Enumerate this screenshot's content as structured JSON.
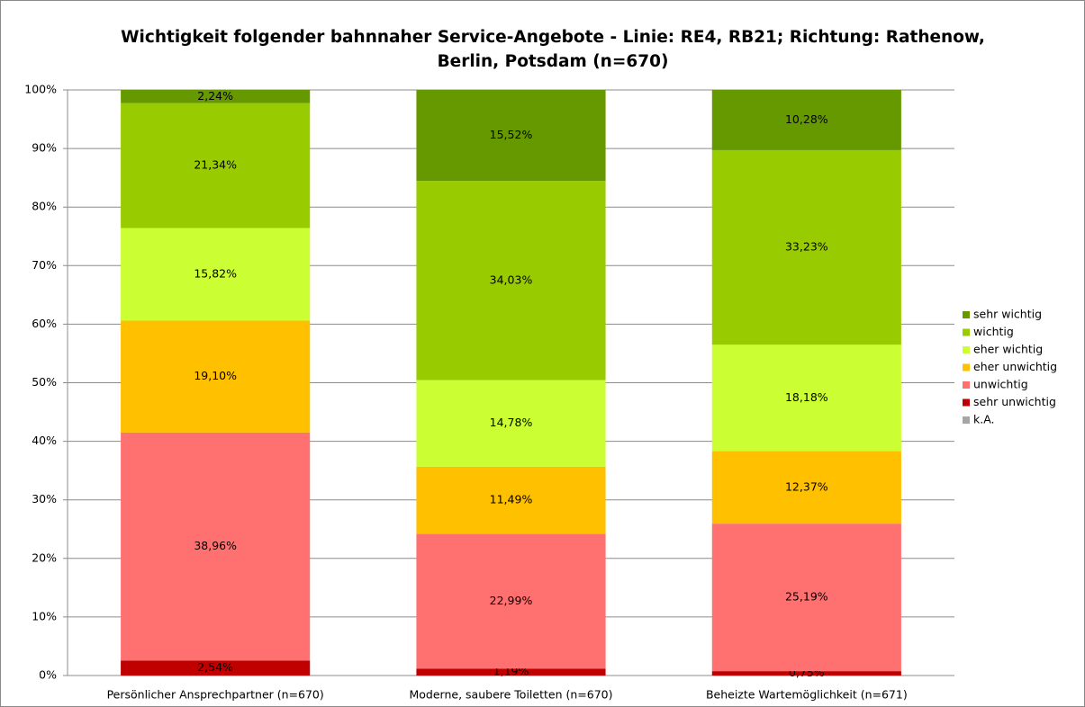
{
  "chart_data": {
    "type": "stacked_bar",
    "title": "Wichtigkeit folgender bahnnaher Service-Angebote - Linie: RE4, RB21; Richtung: Rathenow, Berlin, Potsdam (n=670)",
    "categories": [
      "Persönlicher Ansprechpartner (n=670)",
      "Moderne, saubere Toiletten (n=670)",
      "Beheizte Wartemöglichkeit (n=671)"
    ],
    "series": [
      {
        "name": "k.A.",
        "color": "#a6a6a6",
        "values": [
          0,
          0,
          0
        ]
      },
      {
        "name": "sehr unwichtig",
        "color": "#c00000",
        "values": [
          2.54,
          1.19,
          0.75
        ],
        "value_labels": [
          "2,54%",
          "1,19%",
          "0,75%"
        ]
      },
      {
        "name": "unwichtig",
        "color": "#ff7171",
        "values": [
          38.96,
          22.99,
          25.19
        ],
        "value_labels": [
          "38,96%",
          "22,99%",
          "25,19%"
        ]
      },
      {
        "name": "eher unwichtig",
        "color": "#ffc000",
        "values": [
          19.1,
          11.49,
          12.37
        ],
        "value_labels": [
          "19,10%",
          "11,49%",
          "12,37%"
        ]
      },
      {
        "name": "eher wichtig",
        "color": "#ccff33",
        "values": [
          15.82,
          14.78,
          18.18
        ],
        "value_labels": [
          "15,82%",
          "14,78%",
          "18,18%"
        ]
      },
      {
        "name": "wichtig",
        "color": "#99cc00",
        "values": [
          21.34,
          34.03,
          33.23
        ],
        "value_labels": [
          "21,34%",
          "34,03%",
          "33,23%"
        ]
      },
      {
        "name": "sehr wichtig",
        "color": "#669900",
        "values": [
          2.24,
          15.52,
          10.28
        ],
        "value_labels": [
          "2,24%",
          "15,52%",
          "10,28%"
        ]
      }
    ],
    "ylim": [
      0,
      100
    ],
    "yticks": [
      {
        "value": 0,
        "label": "0%"
      },
      {
        "value": 10,
        "label": "10%"
      },
      {
        "value": 20,
        "label": "20%"
      },
      {
        "value": 30,
        "label": "30%"
      },
      {
        "value": 40,
        "label": "40%"
      },
      {
        "value": 50,
        "label": "50%"
      },
      {
        "value": 60,
        "label": "60%"
      },
      {
        "value": 70,
        "label": "70%"
      },
      {
        "value": 80,
        "label": "80%"
      },
      {
        "value": 90,
        "label": "90%"
      },
      {
        "value": 100,
        "label": "100%"
      }
    ],
    "grid": true,
    "legend": "right"
  }
}
